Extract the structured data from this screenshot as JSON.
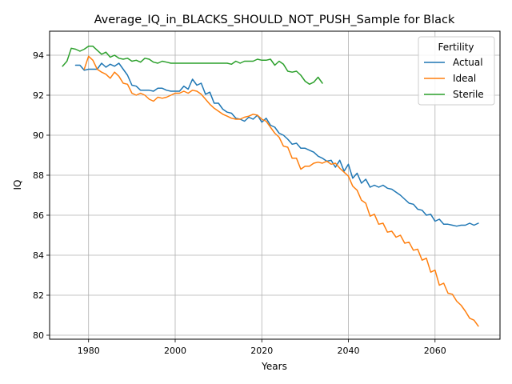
{
  "chart_data": {
    "type": "line",
    "title": "Average_IQ_in_BLACKS_SHOULD_NOT_PUSH_Sample for Black",
    "xlabel": "Years",
    "ylabel": "IQ",
    "xlim": [
      1971,
      2075
    ],
    "ylim": [
      79.8,
      95.2
    ],
    "xticks": [
      1980,
      2000,
      2020,
      2040,
      2060
    ],
    "yticks": [
      80,
      82,
      84,
      86,
      88,
      90,
      92,
      94
    ],
    "grid": true,
    "legend": {
      "title": "Fertility",
      "position": "top-right"
    },
    "series": [
      {
        "name": "Actual",
        "color": "#1f77b4",
        "x": [
          1977,
          1978,
          1979,
          1980,
          1981,
          1982,
          1983,
          1984,
          1985,
          1986,
          1987,
          1988,
          1989,
          1990,
          1991,
          1992,
          1993,
          1994,
          1995,
          1996,
          1997,
          1998,
          1999,
          2000,
          2001,
          2002,
          2003,
          2004,
          2005,
          2006,
          2007,
          2008,
          2009,
          2010,
          2011,
          2012,
          2013,
          2014,
          2015,
          2016,
          2017,
          2018,
          2019,
          2020,
          2021,
          2022,
          2023,
          2024,
          2025,
          2026,
          2027,
          2028,
          2029,
          2030,
          2031,
          2032,
          2033,
          2034,
          2035,
          2036,
          2037,
          2038,
          2039,
          2040,
          2041,
          2042,
          2043,
          2044,
          2045,
          2046,
          2047,
          2048,
          2049,
          2050,
          2051,
          2052,
          2053,
          2054,
          2055,
          2056,
          2057,
          2058,
          2059,
          2060,
          2061,
          2062,
          2063,
          2064,
          2065,
          2066,
          2067,
          2068,
          2069,
          2070
        ],
        "values": [
          93.5,
          93.5,
          93.25,
          93.3,
          93.3,
          93.3,
          93.6,
          93.4,
          93.55,
          93.45,
          93.6,
          93.3,
          93.0,
          92.5,
          92.45,
          92.25,
          92.25,
          92.25,
          92.2,
          92.35,
          92.35,
          92.25,
          92.2,
          92.2,
          92.2,
          92.45,
          92.3,
          92.8,
          92.5,
          92.6,
          92.05,
          92.15,
          91.6,
          91.6,
          91.3,
          91.15,
          91.1,
          90.85,
          90.8,
          90.7,
          90.9,
          90.8,
          91.0,
          90.65,
          90.85,
          90.5,
          90.4,
          90.1,
          90.0,
          89.8,
          89.55,
          89.6,
          89.35,
          89.35,
          89.25,
          89.15,
          88.95,
          88.85,
          88.7,
          88.75,
          88.4,
          88.75,
          88.2,
          88.55,
          87.85,
          88.1,
          87.6,
          87.8,
          87.4,
          87.5,
          87.4,
          87.5,
          87.35,
          87.3,
          87.15,
          87.0,
          86.8,
          86.6,
          86.55,
          86.3,
          86.25,
          86.0,
          86.05,
          85.7,
          85.8,
          85.55,
          85.55,
          85.5,
          85.45,
          85.5,
          85.5,
          85.6,
          85.5,
          85.6
        ]
      },
      {
        "name": "Ideal",
        "color": "#ff7f0e",
        "x": [
          1979,
          1980,
          1981,
          1982,
          1983,
          1984,
          1985,
          1986,
          1987,
          1988,
          1989,
          1990,
          1991,
          1992,
          1993,
          1994,
          1995,
          1996,
          1997,
          1998,
          1999,
          2000,
          2001,
          2002,
          2003,
          2004,
          2005,
          2006,
          2007,
          2008,
          2009,
          2010,
          2011,
          2012,
          2013,
          2014,
          2015,
          2016,
          2017,
          2018,
          2019,
          2020,
          2021,
          2022,
          2023,
          2024,
          2025,
          2026,
          2027,
          2028,
          2029,
          2030,
          2031,
          2032,
          2033,
          2034,
          2035,
          2036,
          2037,
          2038,
          2039,
          2040,
          2041,
          2042,
          2043,
          2044,
          2045,
          2046,
          2047,
          2048,
          2049,
          2050,
          2051,
          2052,
          2053,
          2054,
          2055,
          2056,
          2057,
          2058,
          2059,
          2060,
          2061,
          2062,
          2063,
          2064,
          2065,
          2066,
          2067,
          2068,
          2069,
          2070
        ],
        "values": [
          93.3,
          93.95,
          93.75,
          93.3,
          93.15,
          93.05,
          92.85,
          93.15,
          92.95,
          92.6,
          92.55,
          92.1,
          92.0,
          92.1,
          92.0,
          91.8,
          91.7,
          91.9,
          91.85,
          91.9,
          92.0,
          92.1,
          92.1,
          92.2,
          92.1,
          92.25,
          92.2,
          92.05,
          91.8,
          91.55,
          91.35,
          91.2,
          91.05,
          90.95,
          90.85,
          90.8,
          90.8,
          90.9,
          90.95,
          91.05,
          91.0,
          90.8,
          90.7,
          90.4,
          90.1,
          89.9,
          89.45,
          89.4,
          88.85,
          88.85,
          88.3,
          88.45,
          88.45,
          88.6,
          88.65,
          88.6,
          88.7,
          88.55,
          88.6,
          88.35,
          88.15,
          87.95,
          87.45,
          87.25,
          86.75,
          86.6,
          85.95,
          86.05,
          85.55,
          85.6,
          85.15,
          85.2,
          84.9,
          85.0,
          84.6,
          84.65,
          84.25,
          84.3,
          83.75,
          83.85,
          83.15,
          83.25,
          82.5,
          82.6,
          82.1,
          82.05,
          81.7,
          81.5,
          81.2,
          80.85,
          80.75,
          80.45
        ]
      },
      {
        "name": "Sterile",
        "color": "#2ca02c",
        "x": [
          1974,
          1975,
          1976,
          1977,
          1978,
          1979,
          1980,
          1981,
          1982,
          1983,
          1984,
          1985,
          1986,
          1987,
          1988,
          1989,
          1990,
          1991,
          1992,
          1993,
          1994,
          1995,
          1996,
          1997,
          1998,
          1999,
          2000,
          2001,
          2002,
          2003,
          2004,
          2005,
          2006,
          2007,
          2008,
          2009,
          2010,
          2011,
          2012,
          2013,
          2014,
          2015,
          2016,
          2017,
          2018,
          2019,
          2020,
          2021,
          2022,
          2023,
          2024,
          2025,
          2026,
          2027,
          2028,
          2029,
          2030,
          2031,
          2032,
          2033,
          2034
        ],
        "values": [
          93.45,
          93.7,
          94.35,
          94.3,
          94.2,
          94.3,
          94.45,
          94.45,
          94.25,
          94.05,
          94.15,
          93.9,
          94.0,
          93.85,
          93.8,
          93.85,
          93.7,
          93.75,
          93.65,
          93.85,
          93.8,
          93.65,
          93.6,
          93.7,
          93.65,
          93.6,
          93.6,
          93.6,
          93.6,
          93.6,
          93.6,
          93.6,
          93.6,
          93.6,
          93.6,
          93.6,
          93.6,
          93.6,
          93.6,
          93.55,
          93.7,
          93.6,
          93.7,
          93.7,
          93.7,
          93.8,
          93.75,
          93.75,
          93.8,
          93.5,
          93.7,
          93.55,
          93.2,
          93.15,
          93.2,
          93.0,
          92.7,
          92.55,
          92.65,
          92.9,
          92.6
        ]
      }
    ]
  }
}
